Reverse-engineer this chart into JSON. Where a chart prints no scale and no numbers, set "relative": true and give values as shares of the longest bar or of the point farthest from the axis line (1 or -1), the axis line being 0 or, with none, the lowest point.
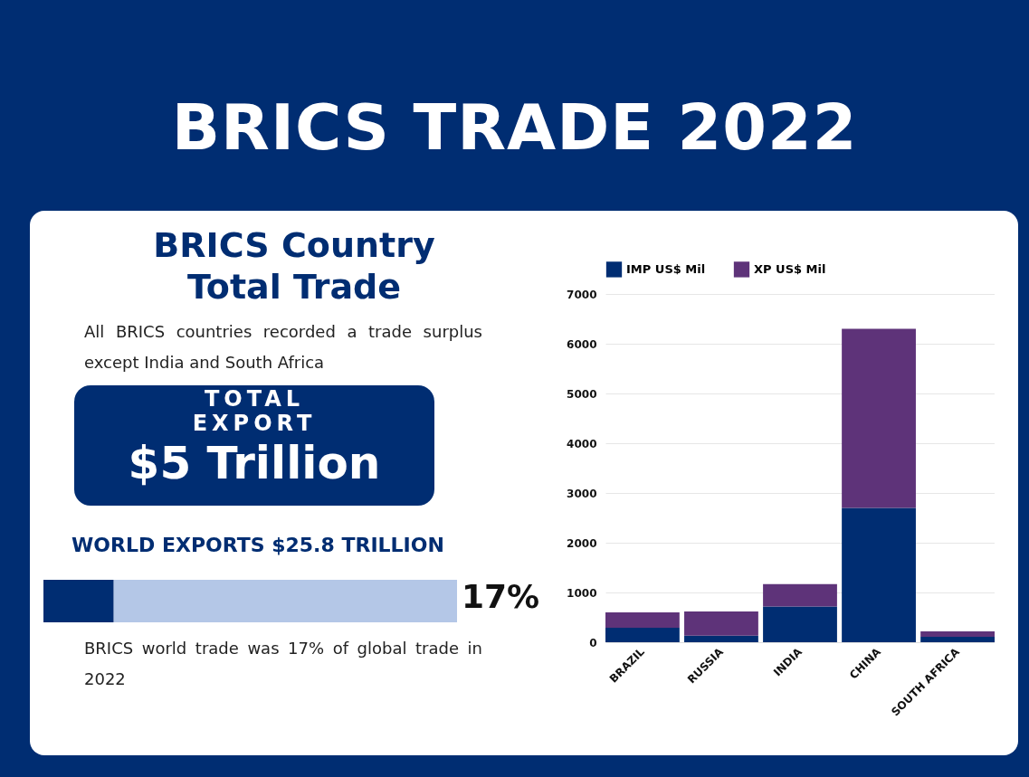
{
  "chart_data": [
    {
      "type": "other",
      "title": "BRICS TRADE 2022",
      "subtitle": "BRICS Country Total Trade",
      "annotations": [
        "All BRICS countries recorded a trade surplus except India and South Africa",
        "TOTAL",
        "EXPORT",
        "$5 Trillion",
        "WORLD EXPORTS  $25.8 TRILLION"
      ]
    },
    {
      "type": "bar",
      "orientation": "horizontal",
      "stacked": true,
      "relative": true,
      "categories": [
        null
      ],
      "series": [
        {
          "color": "#002d72",
          "values": [
            0.17
          ]
        },
        {
          "color": "#b4c7e7",
          "values": [
            0.83
          ]
        }
      ],
      "annotations": [
        "17%",
        "BRICS world trade was 17% of global trade in 2022"
      ]
    },
    {
      "type": "bar",
      "stacked": true,
      "categories": [
        "BRAZIL",
        "RUSSIA",
        "INDIA",
        "CHINA",
        "SOUTH AFRICA"
      ],
      "series": [
        {
          "name": "IMP US$ Mil",
          "color": "#002d72",
          "values": [
            290,
            130,
            720,
            2700,
            110
          ]
        },
        {
          "name": "XP US$ Mil",
          "color": "#5e3379",
          "values": [
            310,
            490,
            450,
            3600,
            110
          ]
        }
      ],
      "ylim": [
        0,
        7000
      ],
      "yticks": [
        0,
        1000,
        2000,
        3000,
        4000,
        5000,
        6000,
        7000
      ],
      "grid": "y",
      "legend": "top"
    }
  ]
}
